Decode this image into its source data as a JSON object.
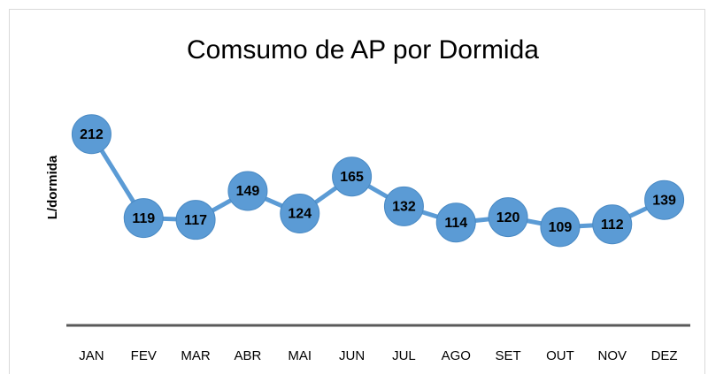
{
  "chart_data": {
    "type": "line",
    "title": "Comsumo de AP por Dormida",
    "y_label": "L/dormida",
    "categories": [
      "JAN",
      "FEV",
      "MAR",
      "ABR",
      "MAI",
      "JUN",
      "JUL",
      "AGO",
      "SET",
      "OUT",
      "NOV",
      "DEZ"
    ],
    "values": [
      212,
      119,
      117,
      149,
      124,
      165,
      132,
      114,
      120,
      109,
      112,
      139
    ],
    "color": "#5b9bd5",
    "ylim": [
      0,
      250
    ],
    "data_labels": true
  }
}
